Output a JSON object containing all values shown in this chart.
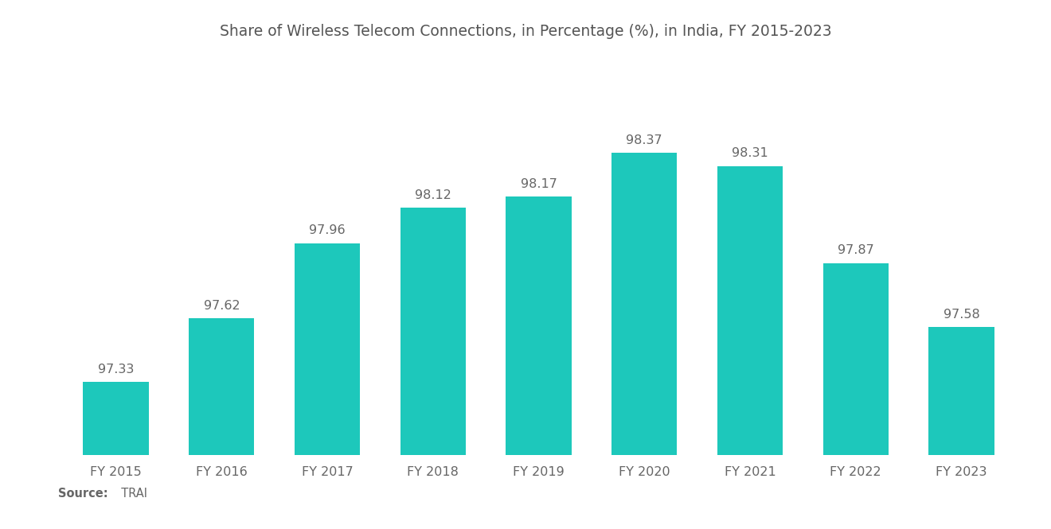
{
  "title": "Share of Wireless Telecom Connections, in Percentage (%), in India, FY 2015-2023",
  "categories": [
    "FY 2015",
    "FY 2016",
    "FY 2017",
    "FY 2018",
    "FY 2019",
    "FY 2020",
    "FY 2021",
    "FY 2022",
    "FY 2023"
  ],
  "values": [
    97.33,
    97.62,
    97.96,
    98.12,
    98.17,
    98.37,
    98.31,
    97.87,
    97.58
  ],
  "bar_color": "#1DC8BB",
  "background_color": "#ffffff",
  "title_fontsize": 13.5,
  "label_fontsize": 11.5,
  "value_fontsize": 11.5,
  "source_bold": "Source:",
  "source_normal": "  TRAI",
  "ylim_min": 97.0,
  "ylim_max": 98.75
}
